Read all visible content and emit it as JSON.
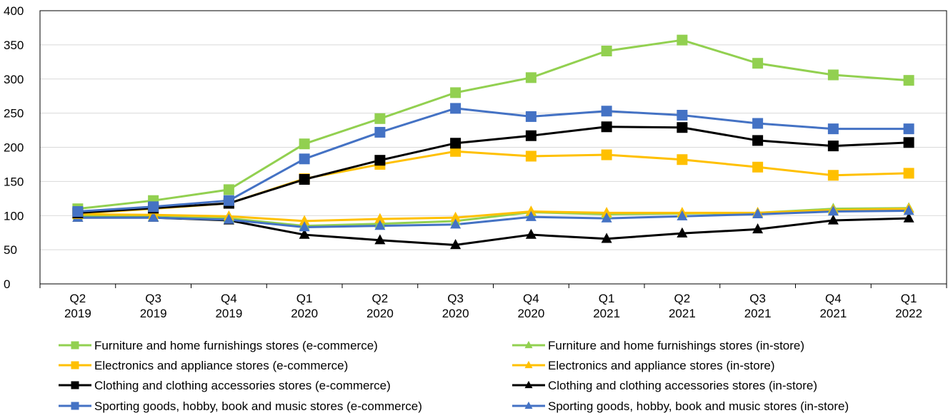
{
  "chart_data": {
    "type": "line",
    "categories": [
      [
        "Q2",
        "2019"
      ],
      [
        "Q3",
        "2019"
      ],
      [
        "Q4",
        "2019"
      ],
      [
        "Q1",
        "2020"
      ],
      [
        "Q2",
        "2020"
      ],
      [
        "Q3",
        "2020"
      ],
      [
        "Q4",
        "2020"
      ],
      [
        "Q1",
        "2021"
      ],
      [
        "Q2",
        "2021"
      ],
      [
        "Q3",
        "2021"
      ],
      [
        "Q4",
        "2021"
      ],
      [
        "Q1",
        "2022"
      ]
    ],
    "ylim": [
      0,
      400
    ],
    "yticks": [
      "0",
      "50",
      "100",
      "150",
      "200",
      "250",
      "300",
      "350",
      "400"
    ],
    "grid": "horizontal",
    "legend_position": "bottom",
    "series": [
      {
        "name": "Furniture and home furnishings stores (e-commerce)",
        "color": "#92d050",
        "marker": "square",
        "values": [
          110,
          122,
          138,
          205,
          242,
          280,
          302,
          341,
          357,
          323,
          306,
          298
        ]
      },
      {
        "name": "Furniture and home furnishings stores (in-store)",
        "color": "#92d050",
        "marker": "triangle",
        "values": [
          100,
          98,
          96,
          85,
          88,
          92,
          105,
          102,
          103,
          104,
          110,
          111
        ]
      },
      {
        "name": "Electronics and appliance stores (e-commerce)",
        "color": "#ffc000",
        "marker": "square",
        "values": [
          103,
          110,
          118,
          154,
          175,
          194,
          187,
          189,
          182,
          171,
          159,
          162
        ]
      },
      {
        "name": "Electronics and appliance stores (in-store)",
        "color": "#ffc000",
        "marker": "triangle",
        "values": [
          102,
          101,
          99,
          92,
          95,
          97,
          106,
          104,
          104,
          104,
          108,
          110
        ]
      },
      {
        "name": "Clothing and clothing accessories stores (e-commerce)",
        "color": "#000000",
        "marker": "square",
        "values": [
          104,
          111,
          118,
          153,
          181,
          206,
          217,
          230,
          229,
          210,
          202,
          207
        ]
      },
      {
        "name": "Clothing and clothing accessories stores (in-store)",
        "color": "#000000",
        "marker": "triangle",
        "values": [
          97,
          97,
          93,
          72,
          64,
          57,
          72,
          66,
          74,
          80,
          93,
          96
        ]
      },
      {
        "name": "Sporting goods, hobby, book and music stores (e-commerce)",
        "color": "#4472c4",
        "marker": "square",
        "values": [
          106,
          113,
          122,
          183,
          222,
          257,
          245,
          253,
          247,
          235,
          227,
          227
        ]
      },
      {
        "name": "Sporting goods, hobby, book and music stores (in-store)",
        "color": "#4472c4",
        "marker": "triangle",
        "values": [
          97,
          97,
          94,
          83,
          85,
          87,
          98,
          96,
          99,
          102,
          106,
          107
        ]
      }
    ]
  }
}
